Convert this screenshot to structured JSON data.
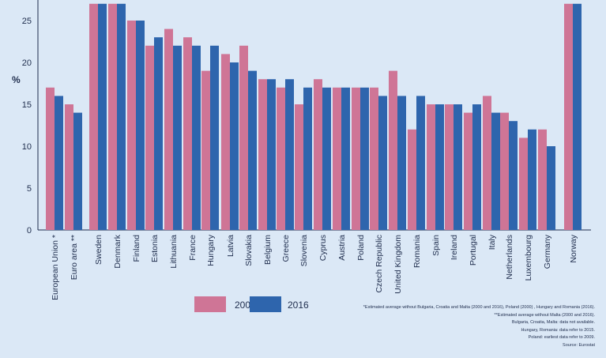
{
  "chart_data": {
    "type": "bar",
    "ylabel": "%",
    "ylim": [
      0,
      27
    ],
    "yticks": [
      0,
      5,
      10,
      15,
      20,
      25
    ],
    "grid": false,
    "legend_position": "bottom-center",
    "categories": [
      "European Union *",
      "Euro area **",
      "Sweden",
      "Denmark",
      "Finland",
      "Estonia",
      "Lithuania",
      "France",
      "Hungary",
      "Latvia",
      "Slovakia",
      "Belgium",
      "Greece",
      "Slovenia",
      "Cyprus",
      "Austria",
      "Poland",
      "Czech Republic",
      "United Kingdom",
      "Romania",
      "Spain",
      "Ireland",
      "Portugal",
      "Italy",
      "Netherlands",
      "Luxembourg",
      "Germany",
      "Norway"
    ],
    "series": [
      {
        "name": "2000",
        "color": "#cf7596",
        "values": [
          17,
          15,
          27,
          27,
          25,
          22,
          24,
          23,
          19,
          21,
          22,
          18,
          17,
          15,
          18,
          17,
          17,
          17,
          19,
          12,
          15,
          15,
          14,
          16,
          14,
          11,
          12,
          27
        ]
      },
      {
        "name": "2016",
        "color": "#2e65ad",
        "values": [
          16,
          14,
          27,
          27,
          25,
          23,
          22,
          22,
          22,
          20,
          19,
          18,
          18,
          17,
          17,
          17,
          17,
          16,
          16,
          16,
          15,
          15,
          15,
          14,
          13,
          12,
          10,
          27
        ]
      }
    ],
    "notes": [
      "*Estimated average without Bulgaria, Croatia and Malta (2000 and 2016), Poland (2000) , Hungary and Romania (2016).",
      "**Estimated average without Malta (2000 and 2016).",
      "Bulgaria, Croatia, Malta: data not available.",
      "Hungary, Romania: data refer to 2015.",
      "Poland: earliest data refer to 2009.",
      "Source: Eurostat"
    ]
  }
}
